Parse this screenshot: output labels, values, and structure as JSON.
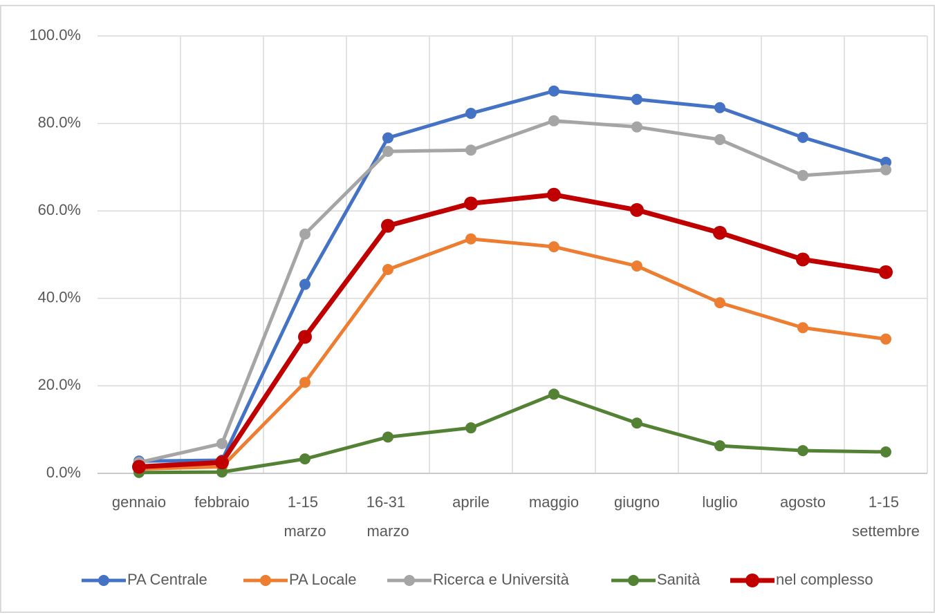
{
  "chart_data": {
    "type": "line",
    "categories": [
      "gennaio",
      "febbraio",
      "1-15 marzo",
      "16-31 marzo",
      "aprile",
      "maggio",
      "giugno",
      "luglio",
      "agosto",
      "1-15 settembre"
    ],
    "series": [
      {
        "name": "PA Centrale",
        "color": "#4472c4",
        "values": [
          2.8,
          3.0,
          43.2,
          76.7,
          82.3,
          87.4,
          85.5,
          83.6,
          76.8,
          71.1
        ]
      },
      {
        "name": "PA Locale",
        "color": "#ed7d31",
        "values": [
          1.0,
          1.5,
          20.8,
          46.6,
          53.6,
          51.8,
          47.4,
          39.0,
          33.3,
          30.7
        ]
      },
      {
        "name": "Ricerca e Università",
        "color": "#a5a5a5",
        "values": [
          2.5,
          6.8,
          54.7,
          73.6,
          73.9,
          80.6,
          79.2,
          76.3,
          68.1,
          69.4
        ]
      },
      {
        "name": "Sanità",
        "color": "#548235",
        "values": [
          0.2,
          0.3,
          3.3,
          8.3,
          10.4,
          18.1,
          11.5,
          6.3,
          5.2,
          4.9
        ]
      },
      {
        "name": "nel complesso",
        "color": "#c00000",
        "values": [
          1.5,
          2.5,
          31.2,
          56.6,
          61.7,
          63.7,
          60.2,
          55.0,
          48.9,
          46.0
        ]
      }
    ],
    "ylim": [
      0,
      100
    ],
    "yticks": [
      {
        "value": 0,
        "label": "0.0%"
      },
      {
        "value": 20,
        "label": "20.0%"
      },
      {
        "value": 40,
        "label": "40.0%"
      },
      {
        "value": 60,
        "label": "60.0%"
      },
      {
        "value": 80,
        "label": "80.0%"
      },
      {
        "value": 100,
        "label": "100.0%"
      }
    ],
    "grid": true,
    "legend": "bottom"
  }
}
